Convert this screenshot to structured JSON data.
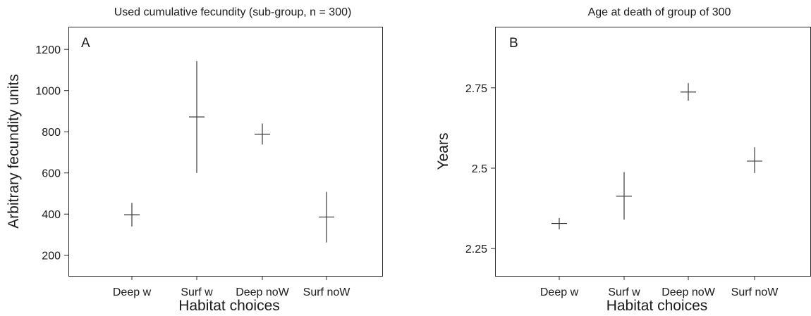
{
  "chart_data": [
    {
      "type": "errorbar",
      "title": "Used cumulative fecundity (sub-group, n = 300)",
      "panel_label": "A",
      "xlabel": "Habitat choices",
      "ylabel": "Arbitrary fecundity units",
      "categories": [
        "Deep w",
        "Surf w",
        "Deep noW",
        "Surf noW"
      ],
      "yticks": [
        200,
        400,
        600,
        800,
        1000,
        1200
      ],
      "ylim": [
        100,
        1310
      ],
      "values": [
        397,
        872,
        788,
        386
      ],
      "lower": [
        340,
        600,
        738,
        262
      ],
      "upper": [
        455,
        1143,
        840,
        508
      ],
      "legend": "none",
      "grid": false
    },
    {
      "type": "errorbar",
      "title": "Age at death of group of 300",
      "panel_label": "B",
      "xlabel": "Habitat choices",
      "ylabel": "Years",
      "categories": [
        "Deep w",
        "Surf w",
        "Deep noW",
        "Surf noW"
      ],
      "yticks": [
        2.25,
        2.5,
        2.75
      ],
      "ylim": [
        2.165,
        2.94
      ],
      "values": [
        2.328,
        2.413,
        2.737,
        2.522
      ],
      "lower": [
        2.31,
        2.34,
        2.71,
        2.485
      ],
      "upper": [
        2.345,
        2.488,
        2.765,
        2.565
      ],
      "legend": "none",
      "grid": false
    }
  ]
}
